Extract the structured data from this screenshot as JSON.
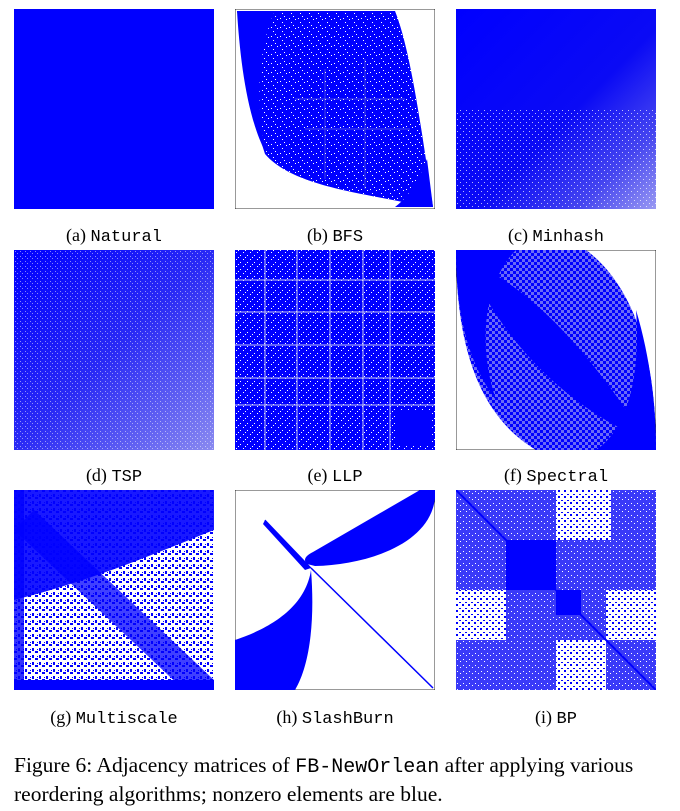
{
  "figure": {
    "caption_prefix": "Figure 6: Adjacency matrices of",
    "dataset": "FB-NewOrlean",
    "caption_suffix": "after applying various reordering algorithms; nonzero elements are blue.",
    "matrix_color": "#0000ff"
  },
  "panels": [
    {
      "label": "(a)",
      "name": "Natural"
    },
    {
      "label": "(b)",
      "name": "BFS"
    },
    {
      "label": "(c)",
      "name": "Minhash"
    },
    {
      "label": "(d)",
      "name": "TSP"
    },
    {
      "label": "(e)",
      "name": "LLP"
    },
    {
      "label": "(f)",
      "name": "Spectral"
    },
    {
      "label": "(g)",
      "name": "Multiscale"
    },
    {
      "label": "(h)",
      "name": "SlashBurn"
    },
    {
      "label": "(i)",
      "name": "BP"
    }
  ]
}
